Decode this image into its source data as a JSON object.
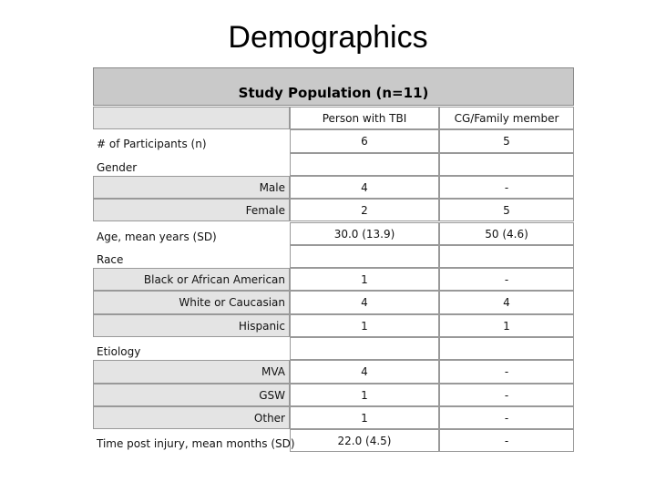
{
  "title": "Demographics",
  "table": {
    "caption": "Study Population (n=11)",
    "columns": [
      "Person with TBI",
      "CG/Family member"
    ],
    "items": [
      {
        "label": "# of Participants (n)",
        "cells": [
          "6",
          "5"
        ]
      },
      {
        "label": "Gender",
        "rows": [
          {
            "label": "Male",
            "cells": [
              "4",
              "-"
            ]
          },
          {
            "label": "Female",
            "cells": [
              "2",
              "5"
            ]
          }
        ]
      },
      {
        "label": "Age, mean years (SD)",
        "cells": [
          "30.0 (13.9)",
          "50 (4.6)"
        ]
      },
      {
        "label": "Race",
        "rows": [
          {
            "label": "Black or African American",
            "cells": [
              "1",
              "-"
            ]
          },
          {
            "label": "White or Caucasian",
            "cells": [
              "4",
              "4"
            ]
          },
          {
            "label": "Hispanic",
            "cells": [
              "1",
              "1"
            ]
          }
        ]
      },
      {
        "label": "Etiology",
        "rows": [
          {
            "label": "MVA",
            "cells": [
              "4",
              "-"
            ]
          },
          {
            "label": "GSW",
            "cells": [
              "1",
              "-"
            ]
          },
          {
            "label": "Other",
            "cells": [
              "1",
              "-"
            ]
          }
        ]
      },
      {
        "label": "Time post injury, mean months (SD)",
        "cells": [
          "22.0 (4.5)",
          "-"
        ]
      }
    ]
  }
}
